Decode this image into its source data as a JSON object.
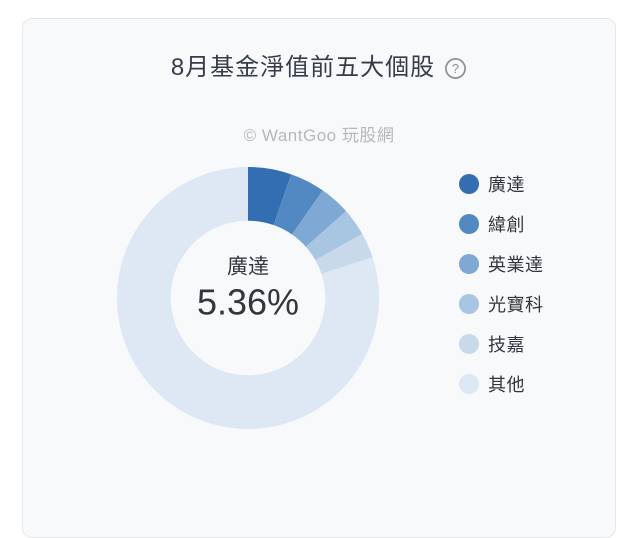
{
  "card": {
    "title": "8月基金淨值前五大個股",
    "watermark": "© WantGoo 玩股網"
  },
  "center_label": {
    "name": "廣達",
    "percent": "5.36%"
  },
  "legend": {
    "position": "right",
    "items": [
      {
        "label": "廣達",
        "color": "#336eb2"
      },
      {
        "label": "緯創",
        "color": "#5389c3"
      },
      {
        "label": "英業達",
        "color": "#7fa9d4"
      },
      {
        "label": "光寶科",
        "color": "#a8c5e1"
      },
      {
        "label": "技嘉",
        "color": "#c8d9ec"
      },
      {
        "label": "其他",
        "color": "#dde8f4"
      }
    ]
  },
  "chart_data": {
    "type": "pie",
    "title": "8月基金淨值前五大個股",
    "donut": true,
    "start_angle_deg": 0,
    "inner_radius_ratio": 0.59,
    "labels": [
      "廣達",
      "緯創",
      "英業達",
      "光寶科",
      "技嘉",
      "其他"
    ],
    "values": [
      5.36,
      4.3,
      3.8,
      3.4,
      3.1,
      80.04
    ],
    "colors": [
      "#336eb2",
      "#5389c3",
      "#7fa9d4",
      "#a8c5e1",
      "#c8d9ec",
      "#dde8f4"
    ],
    "legend_position": "right",
    "center_label": {
      "name": "廣達",
      "value": "5.36%"
    },
    "note": "Only 廣達 5.36% is explicitly labeled on the chart; other slice values are estimated from arc angles."
  },
  "colors": {
    "page_bg": "#ffffff",
    "card_bg": "#f7f9fa",
    "card_border": "#e6e9ec",
    "title_text": "#363c48",
    "watermark_text": "#b5b9be",
    "legend_text": "#33373d",
    "center_text": "#33373d",
    "help_icon": "#8b9198"
  },
  "icons": {
    "help": "question-mark-circle-icon"
  }
}
